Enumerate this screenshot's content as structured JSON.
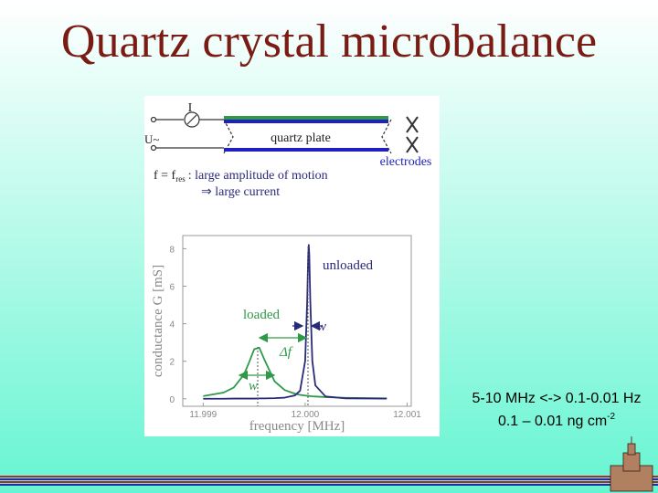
{
  "title": "Quartz crystal microbalance",
  "diagram": {
    "current_label": "I",
    "voltage_label": "U~",
    "plate_label": "quartz plate",
    "electrodes_label": "electrodes",
    "condition": "f = f",
    "condition_sub": "res",
    "condition_text": ": large amplitude of motion",
    "consequence": "⇒ large current"
  },
  "chart_data": {
    "type": "line",
    "xlabel": "frequency [MHz]",
    "ylabel": "conductance G [mS]",
    "xlim": [
      11.9988,
      12.00104
    ],
    "xticks": [
      11.999,
      {
        "value": 12,
        "label": "12.000"
      },
      12.001
    ],
    "ylim": [
      -0.4,
      8.7
    ],
    "yticks": [
      0,
      2,
      4,
      6,
      8
    ],
    "x": [
      11.999,
      11.9992,
      11.9993,
      11.9994,
      11.99945,
      11.9995,
      11.99955,
      11.9996,
      11.9997,
      11.9998,
      11.9999,
      11.99995,
      12.0,
      12.00002,
      12.00003,
      12.000035,
      12.00004,
      12.00005,
      12.00007,
      12.0001,
      12.0002,
      12.0004,
      12.0008
    ],
    "series": [
      {
        "name": "loaded",
        "color": "#2e9a48",
        "values": [
          0.14,
          0.33,
          0.6,
          1.29,
          1.94,
          2.64,
          2.72,
          2.09,
          0.93,
          0.46,
          0.27,
          0.21,
          0.17,
          0.16,
          0.15,
          0.15,
          0.15,
          0.14,
          0.13,
          0.12,
          0.09,
          0.05,
          0.02
        ]
      },
      {
        "name": "unloaded",
        "color": "#2a2a7a",
        "values": [
          0.0,
          0.0,
          0.01,
          0.01,
          0.01,
          0.01,
          0.02,
          0.02,
          0.03,
          0.06,
          0.18,
          0.43,
          2.02,
          5.25,
          7.72,
          8.2,
          7.72,
          5.25,
          2.02,
          0.71,
          0.12,
          0.02,
          0.01
        ]
      }
    ],
    "annotations": [
      "w",
      "Δf",
      "w"
    ]
  },
  "note": {
    "line1": "5-10 MHz <-> 0.1-0.01 Hz",
    "line2": "0.1 – 0.01 ng cm",
    "line2_sup": "-2"
  }
}
